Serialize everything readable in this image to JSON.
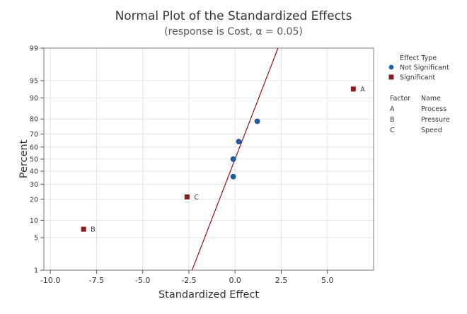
{
  "chart_data": {
    "type": "scatter",
    "title": "Normal Plot of the Standardized Effects",
    "subtitle": "(response is Cost, α = 0.05)",
    "xlabel": "Standardized Effect",
    "ylabel": "Percent",
    "xlim": [
      -10.35,
      7.5
    ],
    "x_ticks": [
      -10.0,
      -7.5,
      -5.0,
      -2.5,
      0.0,
      2.5,
      5.0
    ],
    "x_tick_labels": [
      "-10.0",
      "-7.5",
      "-5.0",
      "-2.5",
      "0.0",
      "2.5",
      "5.0"
    ],
    "y_scale": "normal-probability",
    "ylim": [
      1,
      99
    ],
    "y_ticks": [
      1,
      5,
      10,
      20,
      30,
      40,
      50,
      60,
      70,
      80,
      90,
      95,
      99
    ],
    "y_tick_labels": [
      "1",
      "5",
      "10",
      "20",
      "30",
      "40",
      "50",
      "60",
      "70",
      "80",
      "90",
      "95",
      "99"
    ],
    "grid": true,
    "reference_line": {
      "mean": 0.0,
      "sd": 1.0,
      "color": "#8B0000"
    },
    "series": [
      {
        "name": "Not Significant",
        "marker": "circle",
        "color": "#1F5FA6",
        "points": [
          {
            "x": -0.1,
            "y": 35.7
          },
          {
            "x": -0.1,
            "y": 50.0
          },
          {
            "x": 0.2,
            "y": 64.3
          },
          {
            "x": 1.2,
            "y": 78.6
          }
        ]
      },
      {
        "name": "Significant",
        "marker": "square",
        "color": "#8B1A1A",
        "points": [
          {
            "x": -8.2,
            "y": 7.1,
            "label": "B"
          },
          {
            "x": -2.6,
            "y": 21.4,
            "label": "C"
          },
          {
            "x": 6.4,
            "y": 92.9,
            "label": "A"
          }
        ]
      }
    ],
    "legend": {
      "title": "Effect Type",
      "position": "right",
      "entries": [
        {
          "label": "Not Significant",
          "marker": "circle",
          "color": "#1F5FA6"
        },
        {
          "label": "Significant",
          "marker": "square",
          "color": "#8B1A1A"
        }
      ]
    },
    "factor_table": {
      "headers": [
        "Factor",
        "Name"
      ],
      "rows": [
        [
          "A",
          "Process"
        ],
        [
          "B",
          "Pressure"
        ],
        [
          "C",
          "Speed"
        ]
      ]
    }
  }
}
